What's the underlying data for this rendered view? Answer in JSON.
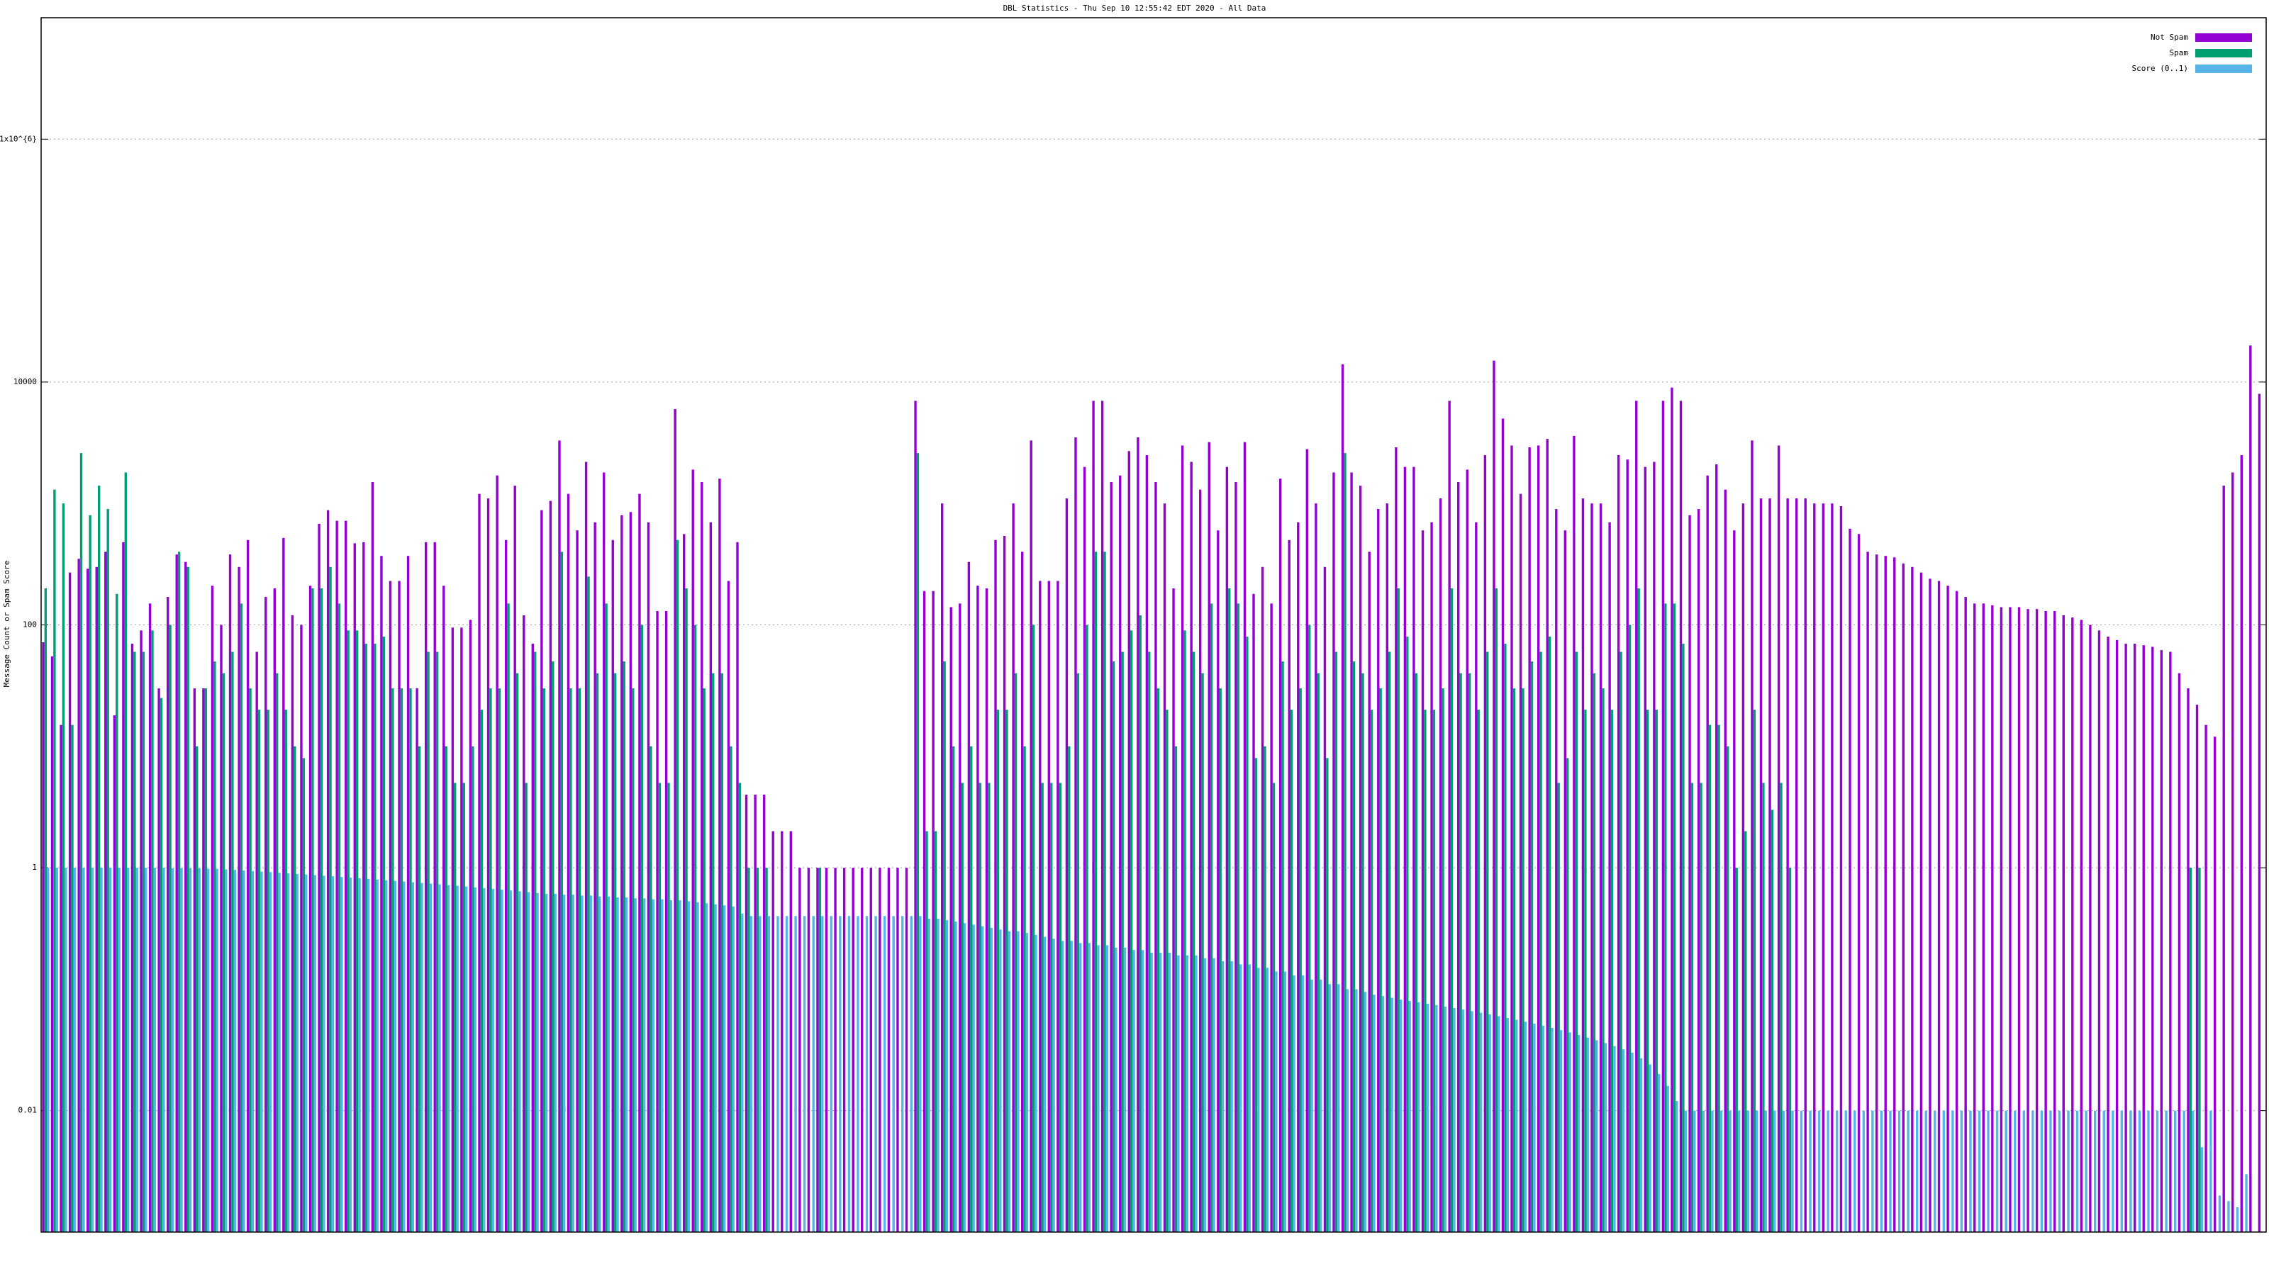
{
  "chart_data": {
    "type": "bar",
    "title": "DBL Statistics - Thu Sep 10 12:55:42 EDT 2020 - All Data",
    "ylabel": "Message Count or Spam Score",
    "log_scale": true,
    "grid": true,
    "legend": "top right",
    "ylim": [
      0.001,
      10000000
    ],
    "yticks": [
      0.01,
      1,
      100,
      10000,
      {
        "value": 1000000,
        "label": "1x10^{6}"
      }
    ],
    "series": [
      {
        "name": "Not Spam",
        "color": "#9400d3",
        "values": [
          72,
          55,
          15,
          270,
          350,
          290,
          300,
          400,
          18,
          480,
          70,
          90,
          150,
          30,
          170,
          380,
          330,
          30,
          30,
          210,
          100,
          380,
          300,
          500,
          60,
          170,
          200,
          520,
          120,
          100,
          210,
          680,
          880,
          720,
          720,
          470,
          480,
          1500,
          370,
          230,
          230,
          370,
          30,
          480,
          480,
          210,
          95,
          95,
          110,
          1200,
          1100,
          1700,
          500,
          1400,
          120,
          70,
          880,
          1050,
          3300,
          1200,
          600,
          2200,
          700,
          1800,
          500,
          800,
          850,
          1200,
          700,
          130,
          130,
          6000,
          560,
          1900,
          1500,
          700,
          1600,
          230,
          480,
          4,
          4,
          4,
          2,
          2,
          2,
          1,
          1,
          1,
          1,
          1,
          1,
          1,
          1,
          1,
          1,
          1,
          1,
          1,
          7000,
          190,
          190,
          1000,
          140,
          150,
          330,
          210,
          200,
          500,
          540,
          1000,
          400,
          3300,
          230,
          230,
          230,
          1100,
          3500,
          2000,
          7000,
          7000,
          1500,
          1700,
          2700,
          3500,
          2500,
          1500,
          1000,
          200,
          3000,
          2200,
          1300,
          3200,
          600,
          2000,
          1500,
          3200,
          180,
          300,
          150,
          1600,
          500,
          700,
          2800,
          1000,
          300,
          1800,
          14000,
          1800,
          1400,
          400,
          900,
          1000,
          2900,
          2000,
          2000,
          600,
          700,
          1100,
          7000,
          1500,
          1900,
          700,
          2500,
          15000,
          5000,
          3000,
          1200,
          2900,
          3000,
          3400,
          900,
          600,
          3600,
          1100,
          1000,
          1000,
          700,
          2500,
          2300,
          7000,
          2000,
          2200,
          7000,
          9000,
          7000,
          800,
          900,
          1700,
          2100,
          1300,
          600,
          1000,
          3300,
          1100,
          1100,
          3000,
          1100,
          1100,
          1100,
          1000,
          1000,
          1000,
          950,
          620,
          560,
          400,
          380,
          370,
          360,
          320,
          300,
          270,
          240,
          230,
          210,
          190,
          170,
          150,
          150,
          145,
          140,
          140,
          140,
          135,
          135,
          130,
          130,
          120,
          115,
          110,
          100,
          90,
          80,
          75,
          70,
          70,
          68,
          66,
          62,
          60,
          40,
          30,
          22,
          15,
          12,
          1400,
          1800,
          2500,
          20000,
          8000
        ]
      },
      {
        "name": "Spam",
        "color": "#009e73",
        "values": [
          200,
          1300,
          1000,
          15,
          2600,
          800,
          1400,
          900,
          180,
          1800,
          60,
          60,
          90,
          25,
          100,
          400,
          300,
          10,
          30,
          50,
          40,
          60,
          150,
          30,
          20,
          20,
          40,
          20,
          10,
          8,
          200,
          200,
          300,
          150,
          90,
          90,
          70,
          70,
          80,
          30,
          30,
          30,
          10,
          60,
          60,
          10,
          5,
          5,
          10,
          20,
          30,
          30,
          150,
          40,
          5,
          60,
          30,
          50,
          400,
          30,
          30,
          250,
          40,
          150,
          40,
          50,
          30,
          100,
          10,
          5,
          5,
          500,
          200,
          100,
          30,
          40,
          40,
          10,
          5,
          1,
          1,
          1,
          null,
          null,
          null,
          null,
          null,
          1,
          null,
          null,
          null,
          null,
          null,
          null,
          null,
          null,
          null,
          null,
          2600,
          2,
          2,
          50,
          10,
          5,
          10,
          5,
          5,
          20,
          20,
          40,
          10,
          100,
          5,
          5,
          5,
          10,
          40,
          100,
          400,
          400,
          50,
          60,
          90,
          120,
          60,
          30,
          20,
          10,
          90,
          60,
          40,
          150,
          30,
          200,
          150,
          80,
          8,
          10,
          5,
          50,
          20,
          30,
          100,
          40,
          8,
          60,
          2600,
          50,
          40,
          20,
          30,
          60,
          200,
          80,
          40,
          20,
          20,
          30,
          200,
          40,
          40,
          20,
          60,
          200,
          70,
          30,
          30,
          50,
          60,
          80,
          5,
          8,
          60,
          20,
          40,
          30,
          20,
          60,
          100,
          200,
          20,
          20,
          150,
          150,
          70,
          5,
          5,
          15,
          15,
          10,
          1,
          2,
          20,
          5,
          3,
          5,
          1,
          null,
          null,
          null,
          null,
          null,
          null,
          null,
          null,
          null,
          null,
          null,
          null,
          null,
          null,
          null,
          null,
          null,
          null,
          null,
          null,
          null,
          null,
          null,
          null,
          null,
          null,
          null,
          null,
          null,
          null,
          null,
          null,
          null,
          null,
          null,
          null,
          null,
          null,
          null,
          null,
          null,
          null,
          null,
          null,
          1,
          1,
          null,
          null,
          null
        ]
      },
      {
        "name": "Score (0..1)",
        "color": "#56b4e9",
        "values": [
          1,
          1,
          1,
          1,
          1,
          1,
          1,
          1,
          1,
          1,
          1,
          1,
          1,
          1,
          0.99,
          0.99,
          0.99,
          0.99,
          0.98,
          0.98,
          0.97,
          0.96,
          0.95,
          0.94,
          0.93,
          0.92,
          0.91,
          0.9,
          0.89,
          0.88,
          0.87,
          0.86,
          0.85,
          0.84,
          0.83,
          0.82,
          0.81,
          0.8,
          0.79,
          0.78,
          0.77,
          0.76,
          0.75,
          0.74,
          0.73,
          0.72,
          0.71,
          0.7,
          0.69,
          0.68,
          0.67,
          0.66,
          0.65,
          0.64,
          0.63,
          0.62,
          0.61,
          0.61,
          0.6,
          0.6,
          0.59,
          0.59,
          0.58,
          0.58,
          0.57,
          0.57,
          0.56,
          0.56,
          0.55,
          0.55,
          0.54,
          0.54,
          0.53,
          0.52,
          0.51,
          0.5,
          0.49,
          0.48,
          0.42,
          0.4,
          0.4,
          0.4,
          0.4,
          0.4,
          0.4,
          0.4,
          0.4,
          0.4,
          0.4,
          0.4,
          0.4,
          0.4,
          0.4,
          0.4,
          0.4,
          0.4,
          0.4,
          0.4,
          0.4,
          0.38,
          0.38,
          0.37,
          0.36,
          0.35,
          0.34,
          0.33,
          0.32,
          0.31,
          0.3,
          0.3,
          0.29,
          0.28,
          0.27,
          0.26,
          0.25,
          0.25,
          0.24,
          0.24,
          0.23,
          0.23,
          0.22,
          0.22,
          0.21,
          0.21,
          0.2,
          0.2,
          0.2,
          0.19,
          0.19,
          0.19,
          0.18,
          0.18,
          0.17,
          0.17,
          0.16,
          0.16,
          0.15,
          0.15,
          0.14,
          0.14,
          0.13,
          0.13,
          0.12,
          0.12,
          0.11,
          0.11,
          0.1,
          0.1,
          0.095,
          0.09,
          0.088,
          0.085,
          0.082,
          0.08,
          0.078,
          0.076,
          0.074,
          0.072,
          0.07,
          0.068,
          0.066,
          0.064,
          0.062,
          0.06,
          0.058,
          0.056,
          0.054,
          0.052,
          0.05,
          0.048,
          0.046,
          0.044,
          0.042,
          0.04,
          0.038,
          0.036,
          0.034,
          0.032,
          0.03,
          0.027,
          0.024,
          0.02,
          0.016,
          0.012,
          0.01,
          0.01,
          0.01,
          0.01,
          0.01,
          0.01,
          0.01,
          0.01,
          0.01,
          0.01,
          0.01,
          0.01,
          0.01,
          0.01,
          0.01,
          0.01,
          0.01,
          0.01,
          0.01,
          0.01,
          0.01,
          0.01,
          0.01,
          0.01,
          0.01,
          0.01,
          0.01,
          0.01,
          0.01,
          0.01,
          0.01,
          0.01,
          0.01,
          0.01,
          0.01,
          0.01,
          0.01,
          0.01,
          0.01,
          0.01,
          0.01,
          0.01,
          0.01,
          0.01,
          0.01,
          0.01,
          0.01,
          0.01,
          0.01,
          0.01,
          0.01,
          0.01,
          0.01,
          0.01,
          0.01,
          0.01,
          0.01,
          0.01,
          0.005,
          0.01,
          0.002,
          0.0018,
          0.0016,
          0.003
        ]
      }
    ]
  }
}
